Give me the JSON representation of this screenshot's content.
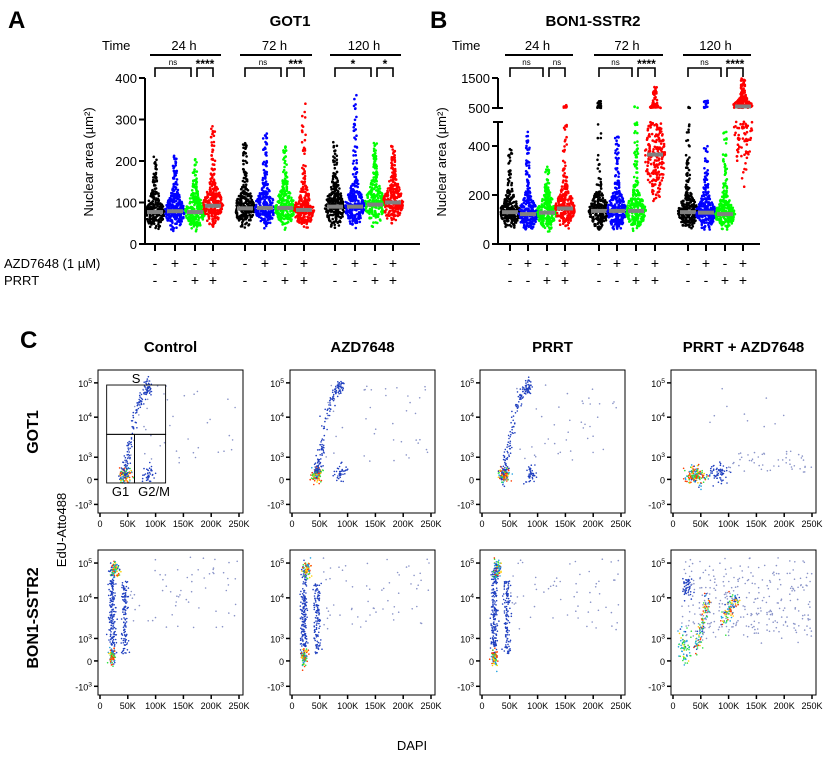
{
  "chart_data": [
    {
      "panel": "A",
      "type": "scatter",
      "subtype": "swarm",
      "title": "GOT1",
      "ylabel": "Nuclear area (µm²)",
      "ylim": [
        0,
        400
      ],
      "yticks": [
        "0",
        "100",
        "200",
        "300",
        "400"
      ],
      "time_label": "Time",
      "row_labels": [
        "AZD7648 (1 µM)",
        "PRRT"
      ],
      "groups": [
        {
          "time": "24 h",
          "azd": [
            "-",
            "+",
            "-",
            "+"
          ],
          "prrt": [
            "-",
            "-",
            "+",
            "+"
          ],
          "medians": [
            77,
            79,
            77,
            92
          ],
          "maxima": [
            212,
            217,
            208,
            286
          ],
          "significance": [
            "ns",
            "****"
          ]
        },
        {
          "time": "72 h",
          "azd": [
            "-",
            "+",
            "-",
            "+"
          ],
          "prrt": [
            "-",
            "-",
            "+",
            "+"
          ],
          "medians": [
            86,
            87,
            87,
            82
          ],
          "maxima": [
            254,
            266,
            236,
            342
          ],
          "significance": [
            "ns",
            "***"
          ]
        },
        {
          "time": "120 h",
          "azd": [
            "-",
            "+",
            "-",
            "+"
          ],
          "prrt": [
            "-",
            "-",
            "+",
            "+"
          ],
          "medians": [
            90,
            90,
            95,
            100
          ],
          "maxima": [
            248,
            360,
            244,
            236
          ],
          "significance": [
            "*",
            "*"
          ]
        }
      ],
      "series_colors": [
        "#000000",
        "#0000ff",
        "#00ff00",
        "#ff0000"
      ],
      "median_color": "#808080"
    },
    {
      "panel": "B",
      "type": "scatter",
      "subtype": "swarm",
      "title": "BON1-SSTR2",
      "ylabel": "Nuclear area (µm²)",
      "ylim": [
        0,
        1500
      ],
      "axis_break": [
        500,
        500
      ],
      "yticks": [
        "0",
        "200",
        "400",
        "500",
        "1500"
      ],
      "time_label": "Time",
      "groups": [
        {
          "time": "24 h",
          "azd": [
            "-",
            "+",
            "-",
            "+"
          ],
          "prrt": [
            "-",
            "-",
            "+",
            "+"
          ],
          "medians": [
            130,
            122,
            128,
            145
          ],
          "maxima": [
            400,
            460,
            315,
            600
          ],
          "significance": [
            "ns",
            "ns"
          ]
        },
        {
          "time": "72 h",
          "azd": [
            "-",
            "+",
            "-",
            "+"
          ],
          "prrt": [
            "-",
            "-",
            "+",
            "+"
          ],
          "medians": [
            135,
            135,
            135,
            365
          ],
          "maxima": [
            750,
            440,
            550,
            1200
          ],
          "significance": [
            "ns",
            "****"
          ]
        },
        {
          "time": "120 h",
          "azd": [
            "-",
            "+",
            "-",
            "+"
          ],
          "prrt": [
            "-",
            "-",
            "+",
            "+"
          ],
          "medians": [
            130,
            128,
            122,
            550
          ],
          "maxima": [
            550,
            750,
            460,
            1500
          ],
          "significance": [
            "ns",
            "****"
          ]
        }
      ],
      "series_colors": [
        "#000000",
        "#0000ff",
        "#00ff00",
        "#ff0000"
      ],
      "median_color": "#808080"
    },
    {
      "panel": "C",
      "type": "scatter",
      "subtype": "flow-cytometry-density",
      "xlabel": "DAPI",
      "ylabel": "EdU-Atto488",
      "columns": [
        "Control",
        "AZD7648",
        "PRRT",
        "PRRT + AZD7648"
      ],
      "rows": [
        "GOT1",
        "BON1-SSTR2"
      ],
      "xticks": [
        "0",
        "50K",
        "100K",
        "150K",
        "200K",
        "250K"
      ],
      "xlim": [
        0,
        262144
      ],
      "yticks": [
        "10^5",
        "10^4",
        "10^3",
        "0",
        "-10^3"
      ],
      "gates": [
        "S",
        "G1",
        "G2/M"
      ],
      "point_color": "#1f3fbf"
    }
  ],
  "labels": {
    "panel_a": "A",
    "panel_b": "B",
    "panel_c": "C"
  }
}
